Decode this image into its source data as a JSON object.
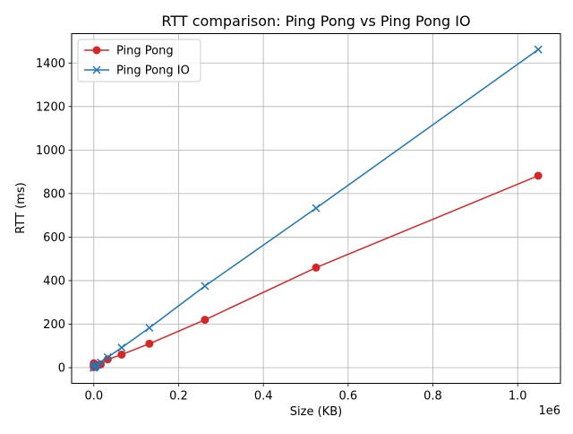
{
  "chart_data": {
    "type": "line",
    "title": "RTT comparison: Ping Pong vs Ping Pong IO",
    "xlabel": "Size (KB)",
    "ylabel": "RTT (ms)",
    "x_offset_text": "1e6",
    "x_tick_labels": [
      "0.0",
      "0.2",
      "0.4",
      "0.6",
      "0.8",
      "1.0"
    ],
    "y_tick_labels": [
      "0",
      "200",
      "400",
      "600",
      "800",
      "1000",
      "1200",
      "1400"
    ],
    "x_ticks": [
      0,
      200000,
      400000,
      600000,
      800000,
      1000000
    ],
    "y_ticks": [
      0,
      200,
      400,
      600,
      800,
      1000,
      1200,
      1400
    ],
    "xlim": [
      -52428,
      1101004
    ],
    "ylim": [
      -72,
      1535
    ],
    "grid": true,
    "legend_position": "top-left",
    "series": [
      {
        "name": "Ping Pong",
        "color": "#d62728",
        "marker": "circle",
        "x": [
          1,
          2,
          4,
          8,
          16,
          32,
          64,
          128,
          256,
          512,
          1024,
          2048,
          4096,
          8192,
          16384,
          32768,
          65536,
          131072,
          262144,
          524288,
          1048576
        ],
        "y": [
          20,
          18,
          15,
          12,
          8,
          5,
          3,
          3,
          3,
          4,
          5,
          6,
          8,
          12,
          15,
          38,
          60,
          110,
          220,
          460,
          882
        ]
      },
      {
        "name": "Ping Pong IO",
        "color": "#1f77b4",
        "marker": "x",
        "x": [
          1,
          2,
          4,
          8,
          16,
          32,
          64,
          128,
          256,
          512,
          1024,
          2048,
          4096,
          8192,
          16384,
          32768,
          65536,
          131072,
          262144,
          524288,
          1048576
        ],
        "y": [
          1,
          1,
          1,
          1,
          1,
          1,
          1,
          1,
          2,
          2,
          3,
          5,
          8,
          13,
          24,
          48,
          92,
          183,
          375,
          733,
          1462
        ]
      }
    ]
  }
}
